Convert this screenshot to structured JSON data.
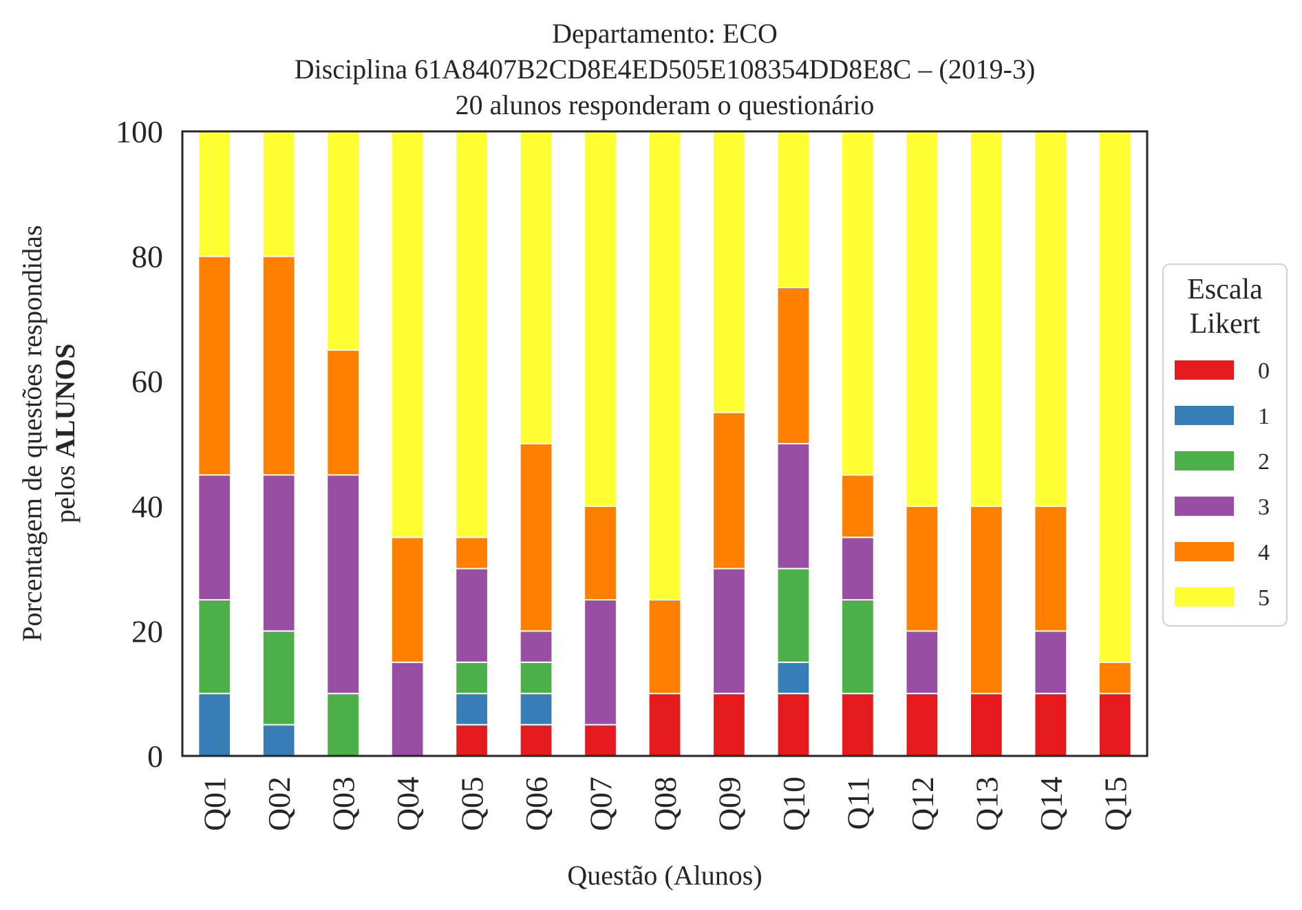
{
  "chart_data": {
    "type": "bar",
    "stacked": true,
    "title": "Departamento: ECO",
    "subtitle_lines": [
      "Disciplina 61A8407B2CD8E4ED505E108354DD8E8C – (2019-3)",
      "20 alunos responderam o questionário"
    ],
    "xlabel": "Questão (Alunos)",
    "ylabel_line1": "Porcentagem de questões respondidas",
    "ylabel_line2_prefix": "pelos ",
    "ylabel_line2_bold": "ALUNOS",
    "ylim": [
      0,
      100
    ],
    "yticks": [
      "0",
      "20",
      "40",
      "60",
      "80",
      "100"
    ],
    "grid": false,
    "categories": [
      "Q01",
      "Q02",
      "Q03",
      "Q04",
      "Q05",
      "Q06",
      "Q07",
      "Q08",
      "Q09",
      "Q10",
      "Q11",
      "Q12",
      "Q13",
      "Q14",
      "Q15"
    ],
    "legend": {
      "title_lines": [
        "Escala",
        "Likert"
      ],
      "placement": "center-right, outside plot"
    },
    "series": [
      {
        "name": "0",
        "color": "#e41a1c",
        "values": [
          0,
          0,
          0,
          0,
          5,
          5,
          5,
          10,
          10,
          10,
          10,
          10,
          10,
          10,
          10
        ]
      },
      {
        "name": "1",
        "color": "#377eb8",
        "values": [
          10,
          5,
          0,
          0,
          5,
          5,
          0,
          0,
          0,
          5,
          0,
          0,
          0,
          0,
          0
        ]
      },
      {
        "name": "2",
        "color": "#4daf4a",
        "values": [
          15,
          15,
          10,
          0,
          5,
          5,
          0,
          0,
          0,
          15,
          15,
          0,
          0,
          0,
          0
        ]
      },
      {
        "name": "3",
        "color": "#984ea3",
        "values": [
          20,
          25,
          35,
          15,
          15,
          5,
          20,
          0,
          20,
          20,
          10,
          10,
          0,
          10,
          0
        ]
      },
      {
        "name": "4",
        "color": "#ff7f00",
        "values": [
          35,
          35,
          20,
          20,
          5,
          30,
          15,
          15,
          25,
          25,
          10,
          20,
          30,
          20,
          5
        ]
      },
      {
        "name": "5",
        "color": "#ffff33",
        "values": [
          20,
          20,
          35,
          65,
          65,
          50,
          60,
          75,
          45,
          25,
          55,
          60,
          60,
          60,
          85
        ]
      }
    ]
  }
}
